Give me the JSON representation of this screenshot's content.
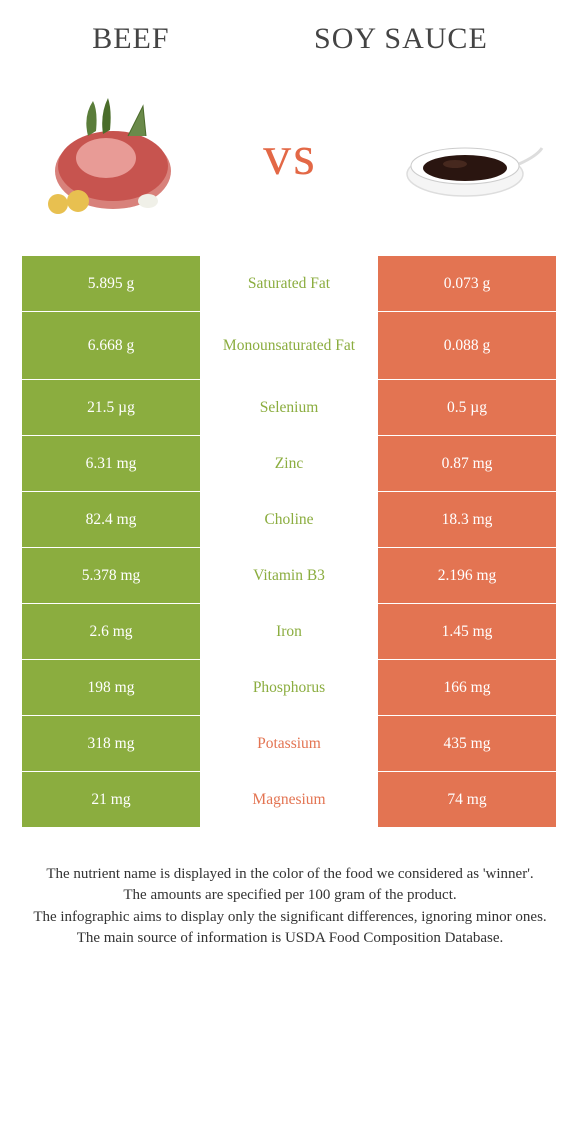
{
  "header": {
    "left": "Beef",
    "right": "Soy sauce"
  },
  "vs": "vs",
  "colors": {
    "green": "#8bad3f",
    "orange": "#e37452"
  },
  "rows": [
    {
      "left": "5.895 g",
      "label": "Saturated Fat",
      "right": "0.073 g",
      "winner": "left",
      "tall": false
    },
    {
      "left": "6.668 g",
      "label": "Monounsaturated Fat",
      "right": "0.088 g",
      "winner": "left",
      "tall": true
    },
    {
      "left": "21.5 µg",
      "label": "Selenium",
      "right": "0.5 µg",
      "winner": "left",
      "tall": false
    },
    {
      "left": "6.31 mg",
      "label": "Zinc",
      "right": "0.87 mg",
      "winner": "left",
      "tall": false
    },
    {
      "left": "82.4 mg",
      "label": "Choline",
      "right": "18.3 mg",
      "winner": "left",
      "tall": false
    },
    {
      "left": "5.378 mg",
      "label": "Vitamin B3",
      "right": "2.196 mg",
      "winner": "left",
      "tall": false
    },
    {
      "left": "2.6 mg",
      "label": "Iron",
      "right": "1.45 mg",
      "winner": "left",
      "tall": false
    },
    {
      "left": "198 mg",
      "label": "Phosphorus",
      "right": "166 mg",
      "winner": "left",
      "tall": false
    },
    {
      "left": "318 mg",
      "label": "Potassium",
      "right": "435 mg",
      "winner": "right",
      "tall": false
    },
    {
      "left": "21 mg",
      "label": "Magnesium",
      "right": "74 mg",
      "winner": "right",
      "tall": false
    }
  ],
  "footer": {
    "line1": "The nutrient name is displayed in the color of the food we considered as 'winner'.",
    "line2": "The amounts are specified per 100 gram of the product.",
    "line3": "The infographic aims to display only the significant differences, ignoring minor ones.",
    "line4": "The main source of information is USDA Food Composition Database."
  }
}
